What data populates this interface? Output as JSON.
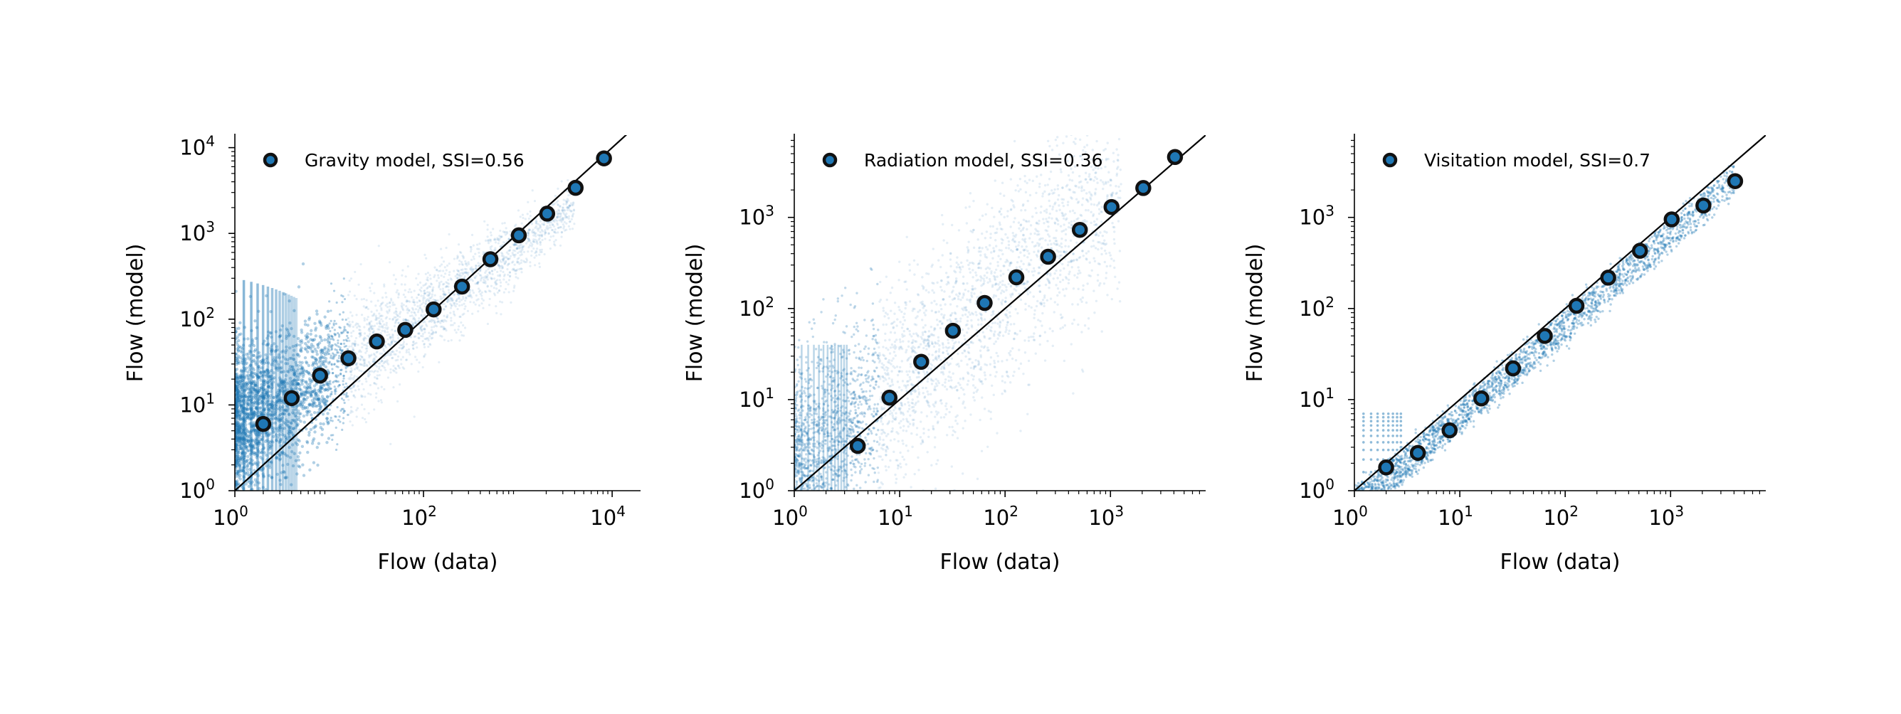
{
  "accent_color": "#1f77b4",
  "chart_data": [
    {
      "type": "scatter",
      "title": "",
      "xlabel": "Flow (data)",
      "ylabel": "Flow (model)",
      "xscale": "log",
      "yscale": "log",
      "xlim": [
        1,
        20000
      ],
      "ylim": [
        1,
        14000
      ],
      "xticks": [
        {
          "base": "10",
          "exp": "0"
        },
        {
          "base": "10",
          "exp": "2"
        },
        {
          "base": "10",
          "exp": "4"
        }
      ],
      "yticks": [
        {
          "base": "10",
          "exp": "0"
        },
        {
          "base": "10",
          "exp": "1"
        },
        {
          "base": "10",
          "exp": "2"
        },
        {
          "base": "10",
          "exp": "3"
        },
        {
          "base": "10",
          "exp": "4"
        }
      ],
      "grid": false,
      "legend_position": "top-left",
      "series": [
        {
          "name": "Gravity model, SSI=0.56",
          "x": [
            2,
            4,
            8,
            16,
            32,
            64,
            128,
            256,
            512,
            1024,
            2048,
            4096,
            8192
          ],
          "y": [
            6,
            12,
            22,
            35,
            55,
            75,
            130,
            240,
            500,
            950,
            1700,
            3400,
            7500
          ]
        }
      ],
      "reference_line": "y = x"
    },
    {
      "type": "scatter",
      "title": "",
      "xlabel": "Flow (data)",
      "ylabel": "Flow (model)",
      "xscale": "log",
      "yscale": "log",
      "xlim": [
        1,
        8000
      ],
      "ylim": [
        1,
        8000
      ],
      "xticks": [
        {
          "base": "10",
          "exp": "0"
        },
        {
          "base": "10",
          "exp": "1"
        },
        {
          "base": "10",
          "exp": "2"
        },
        {
          "base": "10",
          "exp": "3"
        }
      ],
      "yticks": [
        {
          "base": "10",
          "exp": "0"
        },
        {
          "base": "10",
          "exp": "1"
        },
        {
          "base": "10",
          "exp": "2"
        },
        {
          "base": "10",
          "exp": "3"
        }
      ],
      "grid": false,
      "legend_position": "top-left",
      "series": [
        {
          "name": "Radiation model, SSI=0.36",
          "x": [
            4,
            8,
            16,
            32,
            64,
            128,
            256,
            512,
            1024,
            2048,
            4096
          ],
          "y": [
            3.1,
            10.5,
            26,
            57,
            115,
            220,
            370,
            730,
            1300,
            2100,
            4600
          ]
        }
      ],
      "reference_line": "y = x"
    },
    {
      "type": "scatter",
      "title": "",
      "xlabel": "Flow (data)",
      "ylabel": "Flow (model)",
      "xscale": "log",
      "yscale": "log",
      "xlim": [
        1,
        8000
      ],
      "ylim": [
        1,
        8000
      ],
      "xticks": [
        {
          "base": "10",
          "exp": "0"
        },
        {
          "base": "10",
          "exp": "1"
        },
        {
          "base": "10",
          "exp": "2"
        },
        {
          "base": "10",
          "exp": "3"
        }
      ],
      "yticks": [
        {
          "base": "10",
          "exp": "0"
        },
        {
          "base": "10",
          "exp": "1"
        },
        {
          "base": "10",
          "exp": "2"
        },
        {
          "base": "10",
          "exp": "3"
        }
      ],
      "grid": false,
      "legend_position": "top-left",
      "series": [
        {
          "name": "Visitation model, SSI=0.7",
          "x": [
            2,
            4,
            8,
            16,
            32,
            64,
            128,
            256,
            512,
            1024,
            2048,
            4096
          ],
          "y": [
            1.8,
            2.6,
            4.6,
            10.3,
            22,
            50,
            107,
            218,
            430,
            950,
            1350,
            2500
          ]
        }
      ],
      "reference_line": "y = x"
    }
  ]
}
